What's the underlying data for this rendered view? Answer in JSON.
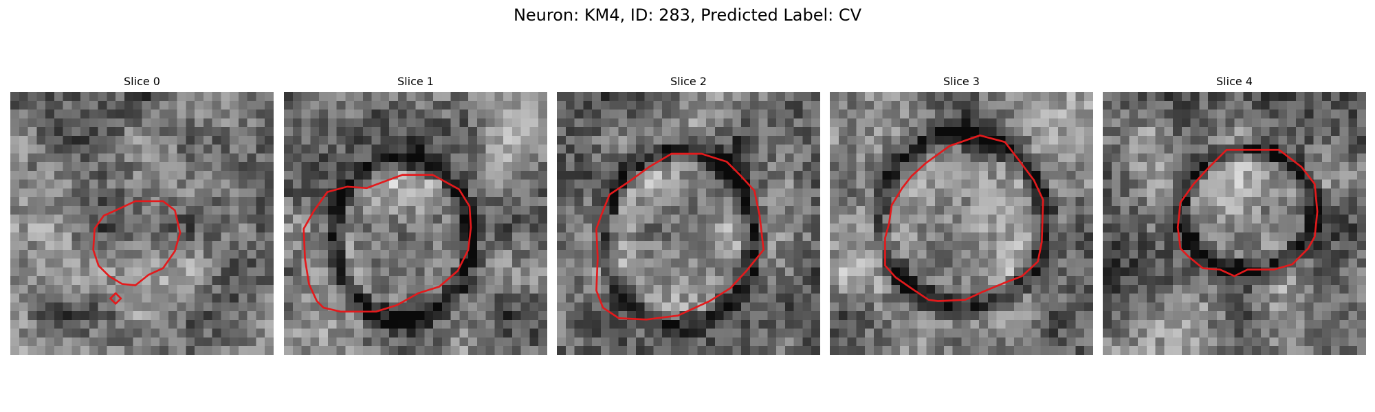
{
  "figure": {
    "title": "Neuron: KM4, ID: 283, Predicted Label: CV",
    "contour_color": "#e31a1c",
    "colormap": "grayscale",
    "panels": [
      {
        "title": "Slice 0",
        "seed": 11,
        "contours": [
          [
            [
              8.0,
              9.0
            ],
            [
              9.5,
              8.3
            ],
            [
              11.6,
              8.3
            ],
            [
              12.5,
              9.0
            ],
            [
              12.9,
              10.7
            ],
            [
              12.5,
              12.1
            ],
            [
              11.6,
              13.4
            ],
            [
              10.5,
              13.9
            ],
            [
              9.5,
              14.7
            ],
            [
              8.5,
              14.6
            ],
            [
              7.5,
              14.0
            ],
            [
              6.7,
              13.2
            ],
            [
              6.3,
              12.0
            ],
            [
              6.4,
              10.4
            ],
            [
              7.1,
              9.4
            ]
          ],
          [
            [
              8.0,
              15.3
            ],
            [
              8.4,
              15.7
            ],
            [
              8.0,
              16.1
            ],
            [
              7.6,
              15.7
            ]
          ]
        ],
        "ring": null
      },
      {
        "title": "Slice 1",
        "seed": 27,
        "contours": [
          [
            [
              6.3,
              7.3
            ],
            [
              9.0,
              6.3
            ],
            [
              11.3,
              6.3
            ],
            [
              13.3,
              7.4
            ],
            [
              14.1,
              8.7
            ],
            [
              14.2,
              10.3
            ],
            [
              14.0,
              12.0
            ],
            [
              13.2,
              13.6
            ],
            [
              11.8,
              14.8
            ],
            [
              10.2,
              15.3
            ],
            [
              8.6,
              16.2
            ],
            [
              7.0,
              16.7
            ],
            [
              5.7,
              16.7
            ],
            [
              4.3,
              16.7
            ],
            [
              3.0,
              16.4
            ],
            [
              2.5,
              15.9
            ],
            [
              1.9,
              14.6
            ],
            [
              1.6,
              12.7
            ],
            [
              1.5,
              10.4
            ],
            [
              2.3,
              9.0
            ],
            [
              3.3,
              7.6
            ],
            [
              4.8,
              7.2
            ]
          ]
        ],
        "ring": {
          "cx": 9.0,
          "cy": 11.2,
          "rx": 5.2,
          "ry": 6.2
        }
      },
      {
        "title": "Slice 2",
        "seed": 53,
        "contours": [
          [
            [
              7.0,
              5.7
            ],
            [
              8.7,
              4.7
            ],
            [
              11.0,
              4.7
            ],
            [
              12.9,
              5.3
            ],
            [
              13.9,
              6.3
            ],
            [
              15.0,
              7.5
            ],
            [
              15.4,
              9.4
            ],
            [
              15.7,
              12.0
            ],
            [
              14.4,
              13.6
            ],
            [
              13.2,
              14.9
            ],
            [
              11.6,
              15.9
            ],
            [
              10.5,
              16.4
            ],
            [
              9.2,
              17.0
            ],
            [
              6.8,
              17.3
            ],
            [
              4.7,
              17.2
            ],
            [
              3.5,
              16.4
            ],
            [
              3.0,
              15.1
            ],
            [
              3.1,
              12.6
            ],
            [
              3.0,
              10.4
            ],
            [
              3.4,
              9.3
            ],
            [
              4.0,
              7.8
            ],
            [
              5.5,
              6.8
            ]
          ]
        ],
        "ring": {
          "cx": 9.3,
          "cy": 11.1,
          "rx": 5.7,
          "ry": 6.8
        }
      },
      {
        "title": "Slice 3",
        "seed": 71,
        "contours": [
          [
            [
              7.3,
              5.4
            ],
            [
              9.1,
              4.1
            ],
            [
              11.4,
              3.3
            ],
            [
              13.3,
              3.8
            ],
            [
              14.3,
              5.1
            ],
            [
              15.5,
              6.7
            ],
            [
              16.2,
              8.2
            ],
            [
              16.1,
              11.4
            ],
            [
              15.8,
              12.9
            ],
            [
              14.6,
              14.0
            ],
            [
              13.3,
              14.5
            ],
            [
              11.6,
              15.2
            ],
            [
              10.3,
              15.8
            ],
            [
              8.2,
              15.9
            ],
            [
              7.5,
              15.8
            ],
            [
              6.3,
              15.0
            ],
            [
              5.0,
              14.1
            ],
            [
              4.2,
              13.2
            ],
            [
              4.2,
              11.1
            ],
            [
              4.5,
              10.0
            ],
            [
              4.7,
              8.6
            ],
            [
              5.5,
              7.3
            ],
            [
              6.2,
              6.4
            ]
          ]
        ],
        "ring": {
          "cx": 10.1,
          "cy": 9.8,
          "rx": 6.3,
          "ry": 6.7
        }
      },
      {
        "title": "Slice 4",
        "seed": 97,
        "contours": [
          [
            [
              8.0,
              5.8
            ],
            [
              9.4,
              4.4
            ],
            [
              11.5,
              4.4
            ],
            [
              13.4,
              4.4
            ],
            [
              15.1,
              5.7
            ],
            [
              16.1,
              7.0
            ],
            [
              16.3,
              9.1
            ],
            [
              16.1,
              11.0
            ],
            [
              15.6,
              11.9
            ],
            [
              14.4,
              13.1
            ],
            [
              13.0,
              13.5
            ],
            [
              11.0,
              13.5
            ],
            [
              10.0,
              14.0
            ],
            [
              8.9,
              13.5
            ],
            [
              7.6,
              13.4
            ],
            [
              6.5,
              12.5
            ],
            [
              5.9,
              11.9
            ],
            [
              5.7,
              10.3
            ],
            [
              5.9,
              8.4
            ],
            [
              6.9,
              7.0
            ]
          ]
        ],
        "ring": {
          "cx": 11.0,
          "cy": 9.0,
          "rx": 5.1,
          "ry": 4.7
        }
      }
    ]
  }
}
